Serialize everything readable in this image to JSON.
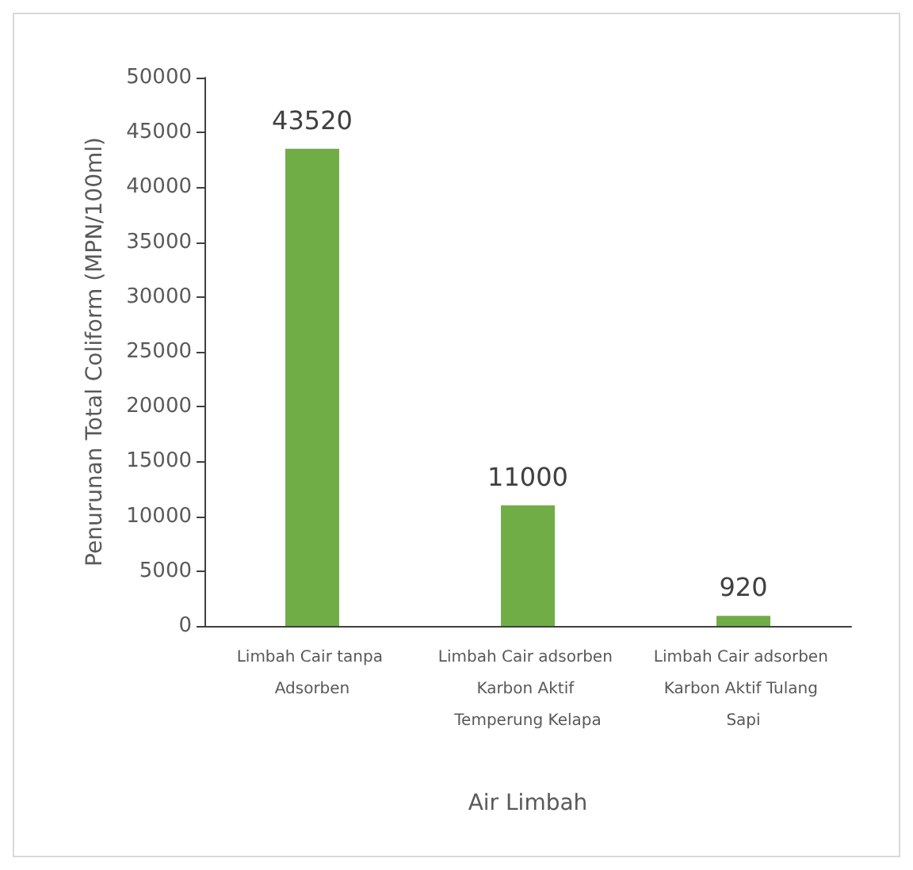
{
  "chart_data": {
    "type": "bar",
    "xlabel": "Air Limbah",
    "ylabel": "Penurunan Total Coliform (MPN/100ml)",
    "categories": [
      "Limbah Cair tanpa Adsorben",
      "Limbah Cair adsorben Karbon Aktif Temperung Kelapa",
      "Limbah Cair adsorben Karbon Aktif Tulang Sapi"
    ],
    "values": [
      43520,
      11000,
      920
    ],
    "color": "#70ad47",
    "ylim": [
      0,
      50000
    ],
    "yticks": [
      0,
      5000,
      10000,
      15000,
      20000,
      25000,
      30000,
      35000,
      40000,
      45000,
      50000
    ],
    "grid": false,
    "data_labels": true
  }
}
